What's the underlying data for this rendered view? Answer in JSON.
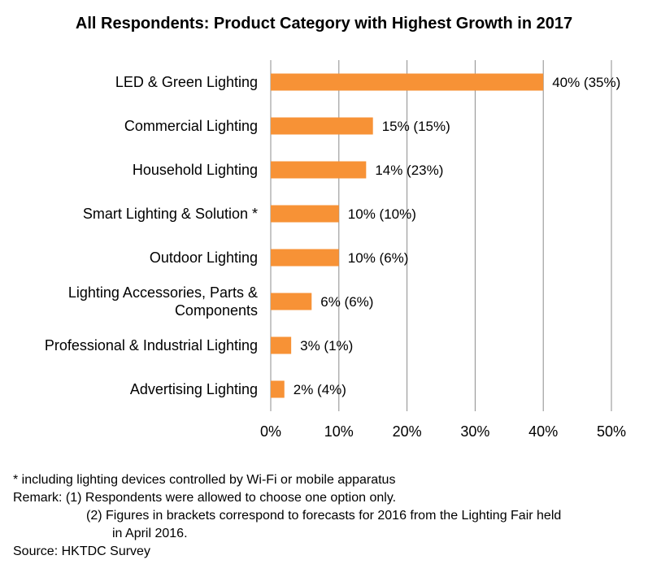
{
  "chart_data": {
    "type": "bar",
    "orientation": "horizontal",
    "title": "All Respondents: Product Category with Highest Growth in 2017",
    "categories": [
      [
        "LED & Green Lighting"
      ],
      [
        "Commercial Lighting"
      ],
      [
        "Household Lighting"
      ],
      [
        "Smart Lighting & Solution *"
      ],
      [
        "Outdoor Lighting"
      ],
      [
        "Lighting Accessories, Parts &",
        "Components"
      ],
      [
        "Professional & Industrial Lighting"
      ],
      [
        "Advertising Lighting"
      ]
    ],
    "values": [
      40,
      15,
      14,
      10,
      10,
      6,
      3,
      2
    ],
    "value_labels": [
      "40% (35%)",
      "15% (15%)",
      "14% (23%)",
      "10% (10%)",
      "10% (6%)",
      "6% (6%)",
      "3% (1%)",
      "2% (4%)"
    ],
    "xlim": [
      0,
      50
    ],
    "xticks": [
      0,
      10,
      20,
      30,
      40,
      50
    ],
    "xtick_labels": [
      "0%",
      "10%",
      "20%",
      "30%",
      "40%",
      "50%"
    ],
    "bar_color": "#F79236",
    "grid": true,
    "legend": "none",
    "xlabel": "",
    "ylabel": ""
  },
  "notes": {
    "footnote": "* including lighting devices controlled by Wi-Fi or mobile apparatus",
    "remark1": "Remark: (1) Respondents were allowed to choose one option only.",
    "remark2_line1": "(2) Figures in brackets correspond to forecasts for 2016 from the Lighting Fair held",
    "remark2_line2": "in April 2016.",
    "source": "Source: HKTDC Survey"
  }
}
